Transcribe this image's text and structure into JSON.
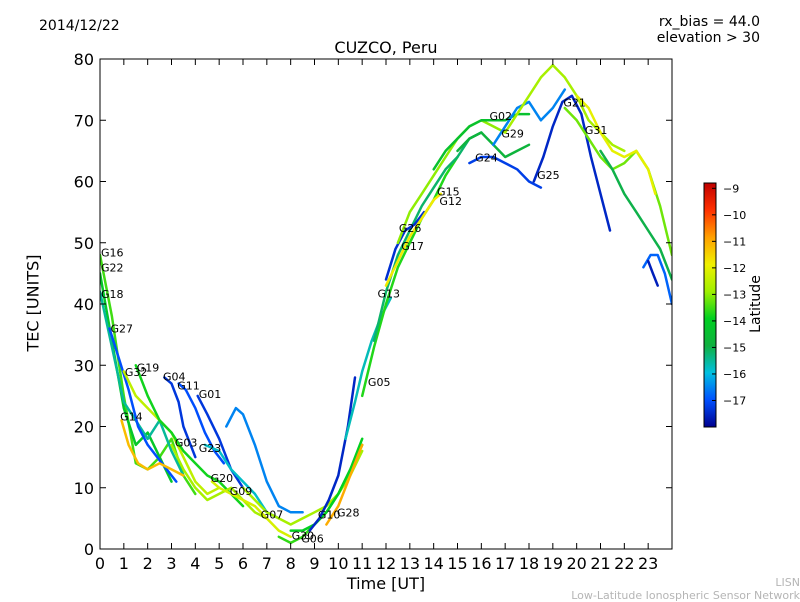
{
  "header": {
    "date": "2014/12/22",
    "rx_bias": "rx_bias = 44.0",
    "elevation": "elevation > 30"
  },
  "footer": {
    "line1": "LISN",
    "line2": "Low-Latitude Ionospheric Sensor Network"
  },
  "chart_data": {
    "type": "line",
    "title": "CUZCO, Peru",
    "xlabel": "Time [UT]",
    "ylabel": "TEC [UNITS]",
    "xlim": [
      0,
      24
    ],
    "ylim": [
      0,
      80
    ],
    "xticks": [
      0,
      1,
      2,
      3,
      4,
      5,
      6,
      7,
      8,
      9,
      10,
      11,
      12,
      13,
      14,
      15,
      16,
      17,
      18,
      19,
      20,
      21,
      22,
      23
    ],
    "yticks": [
      0,
      10,
      20,
      30,
      40,
      50,
      60,
      70,
      80
    ],
    "colorbar": {
      "label": "Latitude",
      "range": [
        -18,
        -8.8
      ],
      "ticks": [
        -9,
        -10,
        -11,
        -12,
        -13,
        -14,
        -15,
        -16,
        -17
      ],
      "colors": [
        "#00008f",
        "#0050ff",
        "#00c0e0",
        "#10b040",
        "#00d020",
        "#a0f000",
        "#f0f000",
        "#ffa000",
        "#ff3000",
        "#c00000"
      ]
    },
    "series": [
      {
        "name": "G16",
        "lat": -13.5,
        "x": [
          0,
          0.5,
          1,
          1.5,
          2,
          2.5,
          3,
          3.5,
          4
        ],
        "values": [
          48,
          38,
          25,
          14,
          13,
          15,
          18,
          12,
          9
        ]
      },
      {
        "name": "G22",
        "lat": -14.2,
        "x": [
          0,
          0.5,
          1,
          1.5,
          2,
          2.5,
          3
        ],
        "values": [
          45,
          34,
          23,
          17,
          19,
          15,
          11
        ]
      },
      {
        "name": "G18",
        "lat": -15.5,
        "x": [
          0,
          0.5,
          1,
          1.5,
          2,
          2.5,
          3,
          3.5
        ],
        "values": [
          42,
          33,
          24,
          21,
          18,
          21,
          16,
          12
        ]
      },
      {
        "name": "G27",
        "lat": -17,
        "x": [
          0.4,
          0.8,
          1.2,
          1.6,
          2,
          2.6,
          3.2
        ],
        "values": [
          36,
          31,
          26,
          20,
          17,
          14,
          11
        ]
      },
      {
        "name": "G32",
        "lat": -12.5,
        "x": [
          1,
          1.5,
          2,
          2.5,
          3,
          3.5,
          4,
          4.5,
          5
        ],
        "values": [
          29,
          25,
          23,
          21,
          19,
          15,
          11,
          9,
          10
        ]
      },
      {
        "name": "G19",
        "lat": -13.8,
        "x": [
          1.5,
          2,
          2.5,
          3,
          3.5,
          4,
          4.5,
          5,
          5.5,
          6
        ],
        "values": [
          30,
          25,
          21,
          19,
          16,
          14,
          12,
          11,
          9,
          7
        ]
      },
      {
        "name": "G14",
        "lat": -11.2,
        "x": [
          0.9,
          1.2,
          1.6,
          2,
          2.5,
          3,
          3.5
        ],
        "values": [
          21,
          17,
          14,
          13,
          14,
          13,
          12
        ]
      },
      {
        "name": "G04",
        "lat": -17.3,
        "x": [
          2.7,
          3,
          3.3,
          3.5,
          3.8,
          4
        ],
        "values": [
          28,
          27,
          24,
          20,
          17,
          15
        ]
      },
      {
        "name": "G11",
        "lat": -17,
        "x": [
          3.3,
          3.6,
          4,
          4.4,
          4.8,
          5.2
        ],
        "values": [
          27,
          26,
          23,
          19,
          16,
          14
        ]
      },
      {
        "name": "G01",
        "lat": -17.3,
        "x": [
          4.1,
          4.5,
          5,
          5.5,
          6
        ],
        "values": [
          25,
          22,
          18,
          13,
          10
        ]
      },
      {
        "name": "G03",
        "lat": -12.8,
        "x": [
          3,
          3.5,
          4,
          4.5,
          5,
          5.5,
          6,
          6.5,
          7
        ],
        "values": [
          17,
          13,
          10,
          8,
          9,
          10,
          8,
          6,
          5
        ]
      },
      {
        "name": "G23",
        "lat": -15.8,
        "x": [
          4.4,
          5,
          5.5,
          6,
          6.5,
          7,
          7.5
        ],
        "values": [
          17,
          16,
          13,
          11,
          9,
          6,
          5
        ]
      },
      {
        "name": "G20",
        "lat": -12.2,
        "x": [
          4.7,
          5,
          5.5,
          6,
          6.5,
          7,
          7.5,
          8
        ],
        "values": [
          11,
          10,
          9,
          8,
          7,
          5,
          3,
          2
        ]
      },
      {
        "name": "G09",
        "lat": -16.5,
        "x": [
          5.3,
          5.7,
          6,
          6.5,
          7,
          7.5,
          8,
          8.5
        ],
        "values": [
          20,
          23,
          22,
          17,
          11,
          7,
          6,
          6
        ]
      },
      {
        "name": "G07",
        "lat": -12.8,
        "x": [
          6,
          6.5,
          7,
          7.5,
          8,
          8.5,
          9,
          9.5,
          10,
          10.5,
          11
        ],
        "values": [
          10,
          8,
          6,
          5,
          4,
          5,
          6,
          7,
          9,
          12,
          16
        ]
      },
      {
        "name": "G30",
        "lat": -13.6,
        "x": [
          7.5,
          8,
          8.5,
          9,
          9.5,
          10,
          10.5,
          11
        ],
        "values": [
          2,
          1,
          2,
          4,
          6,
          9,
          13,
          17
        ]
      },
      {
        "name": "G06",
        "lat": -13.9,
        "x": [
          8,
          8.5,
          9,
          9.5,
          10,
          10.5,
          11
        ],
        "values": [
          3,
          3,
          4,
          6,
          9,
          13,
          18
        ]
      },
      {
        "name": "G10",
        "lat": -17.5,
        "x": [
          8.8,
          9.2,
          9.6,
          10,
          10.4,
          10.7
        ],
        "values": [
          3,
          5,
          8,
          12,
          20,
          28
        ]
      },
      {
        "name": "G28",
        "lat": -11,
        "x": [
          9.5,
          10,
          10.4,
          10.8,
          11
        ],
        "values": [
          4,
          7,
          11,
          15,
          17
        ]
      },
      {
        "name": "G05",
        "lat": -15.7,
        "x": [
          10.3,
          10.7,
          11,
          11.4,
          11.8,
          12.2
        ],
        "values": [
          18,
          24,
          29,
          34,
          38,
          41
        ]
      },
      {
        "name": "G13",
        "lat": -13.7,
        "x": [
          11,
          11.5,
          12,
          12.5,
          13,
          13.5,
          14,
          14.5,
          15
        ],
        "values": [
          25,
          33,
          40,
          46,
          50,
          54,
          57,
          61,
          64
        ]
      },
      {
        "name": "G17",
        "lat": -15.2,
        "x": [
          11.5,
          12,
          12.5,
          13,
          13.5,
          14,
          14.5,
          15,
          15.5,
          16
        ],
        "values": [
          34,
          42,
          48,
          52,
          56,
          59,
          62,
          64,
          67,
          68
        ]
      },
      {
        "name": "G26",
        "lat": -17.4,
        "x": [
          12,
          12.4,
          12.8,
          13.2,
          13.6
        ],
        "values": [
          44,
          49,
          52,
          53,
          55
        ]
      },
      {
        "name": "G15",
        "lat": -13,
        "x": [
          12.5,
          13,
          13.5,
          14,
          14.5,
          15,
          15.5,
          16,
          16.5,
          17
        ],
        "values": [
          50,
          55,
          58,
          61,
          64,
          67,
          69,
          70,
          69,
          68
        ]
      },
      {
        "name": "G12",
        "lat": -11.8,
        "x": [
          12,
          12.5,
          13,
          13.5,
          14,
          14.3
        ],
        "values": [
          43,
          47,
          51,
          54,
          57,
          58
        ]
      },
      {
        "name": "G02",
        "lat": -14.4,
        "x": [
          14,
          14.5,
          15,
          15.5,
          16,
          16.5,
          17,
          17.5,
          18
        ],
        "values": [
          62,
          65,
          67,
          69,
          70,
          70,
          70,
          71,
          71
        ]
      },
      {
        "name": "G29",
        "lat": -14.8,
        "x": [
          15,
          15.5,
          16,
          16.5,
          17,
          17.5,
          18
        ],
        "values": [
          65,
          67,
          68,
          66,
          64,
          65,
          66
        ]
      },
      {
        "name": "G24",
        "lat": -17.2,
        "x": [
          15.5,
          16,
          16.5,
          17,
          17.5,
          18,
          18.5
        ],
        "values": [
          63,
          64,
          64,
          63,
          62,
          60,
          59
        ]
      },
      {
        "name": "G25",
        "lat": -16.5,
        "x": [
          16.5,
          17,
          17.5,
          18,
          18.5,
          19,
          19.5
        ],
        "values": [
          66,
          69,
          72,
          73,
          70,
          72,
          75
        ]
      },
      {
        "name": "G21",
        "lat": -12.8,
        "x": [
          17,
          17.5,
          18,
          18.5,
          19,
          19.5,
          20,
          20.5,
          21,
          21.5,
          22
        ],
        "values": [
          68,
          71,
          74,
          77,
          79,
          77,
          74,
          70,
          68,
          66,
          65
        ]
      },
      {
        "name": "G31",
        "lat": -17.5,
        "x": [
          18.2,
          18.6,
          19,
          19.4,
          19.8,
          20.2,
          20.6,
          21,
          21.4
        ],
        "values": [
          60,
          64,
          69,
          73,
          74,
          71,
          64,
          58,
          52
        ]
      },
      {
        "name": "G02b",
        "lat": -13.2,
        "x": [
          19.5,
          20,
          20.5,
          21,
          21.5,
          22,
          22.5,
          23,
          23.5,
          24
        ],
        "values": [
          72,
          70,
          67,
          64,
          62,
          63,
          65,
          62,
          56,
          48
        ]
      },
      {
        "name": "G29b",
        "lat": -12,
        "x": [
          20,
          20.5,
          21,
          21.5,
          22,
          22.5,
          23,
          23.3
        ],
        "values": [
          74,
          72,
          68,
          65,
          64,
          65,
          62,
          58
        ]
      },
      {
        "name": "G25b",
        "lat": -15,
        "x": [
          21,
          21.5,
          22,
          22.5,
          23,
          23.5,
          24
        ],
        "values": [
          65,
          62,
          58,
          55,
          52,
          49,
          44
        ]
      },
      {
        "name": "G31b",
        "lat": -16.8,
        "x": [
          22.8,
          23.1,
          23.4,
          23.7,
          24
        ],
        "values": [
          46,
          48,
          48,
          45,
          40
        ]
      },
      {
        "name": "G24b",
        "lat": -17.6,
        "x": [
          23,
          23.2,
          23.4
        ],
        "values": [
          47,
          45,
          43
        ]
      }
    ],
    "labels": [
      {
        "text": "G16",
        "x": 0,
        "y": 48.4
      },
      {
        "text": "G22",
        "x": 0,
        "y": 46
      },
      {
        "text": "G18",
        "x": 0,
        "y": 41.6
      },
      {
        "text": "G27",
        "x": 0.4,
        "y": 36
      },
      {
        "text": "G32",
        "x": 1,
        "y": 28.9
      },
      {
        "text": "G19",
        "x": 1.5,
        "y": 29.6
      },
      {
        "text": "G04",
        "x": 2.6,
        "y": 28.2
      },
      {
        "text": "G11",
        "x": 3.2,
        "y": 26.7
      },
      {
        "text": "G01",
        "x": 4.1,
        "y": 25.3
      },
      {
        "text": "G14",
        "x": 0.8,
        "y": 21.6
      },
      {
        "text": "G03",
        "x": 3.1,
        "y": 17.4
      },
      {
        "text": "G23",
        "x": 4.1,
        "y": 16.5
      },
      {
        "text": "G20",
        "x": 4.6,
        "y": 11.6
      },
      {
        "text": "G09",
        "x": 5.4,
        "y": 9.5
      },
      {
        "text": "G07",
        "x": 6.7,
        "y": 5.6
      },
      {
        "text": "G30",
        "x": 8,
        "y": 2.2
      },
      {
        "text": "G06",
        "x": 8.4,
        "y": 1.7
      },
      {
        "text": "G10",
        "x": 9.1,
        "y": 5.6
      },
      {
        "text": "G28",
        "x": 9.9,
        "y": 6
      },
      {
        "text": "G05",
        "x": 11.2,
        "y": 27.3
      },
      {
        "text": "G13",
        "x": 11.6,
        "y": 41.7
      },
      {
        "text": "G17",
        "x": 12.6,
        "y": 49.5
      },
      {
        "text": "G26",
        "x": 12.5,
        "y": 52.4
      },
      {
        "text": "G15",
        "x": 14.1,
        "y": 58.4
      },
      {
        "text": "G12",
        "x": 14.2,
        "y": 56.8
      },
      {
        "text": "G24",
        "x": 15.7,
        "y": 63.9
      },
      {
        "text": "G02",
        "x": 16.3,
        "y": 70.7
      },
      {
        "text": "G29",
        "x": 16.8,
        "y": 67.8
      },
      {
        "text": "G25",
        "x": 18.3,
        "y": 61.1
      },
      {
        "text": "G21",
        "x": 19.4,
        "y": 72.9
      },
      {
        "text": "G31",
        "x": 20.3,
        "y": 68.4
      }
    ]
  }
}
